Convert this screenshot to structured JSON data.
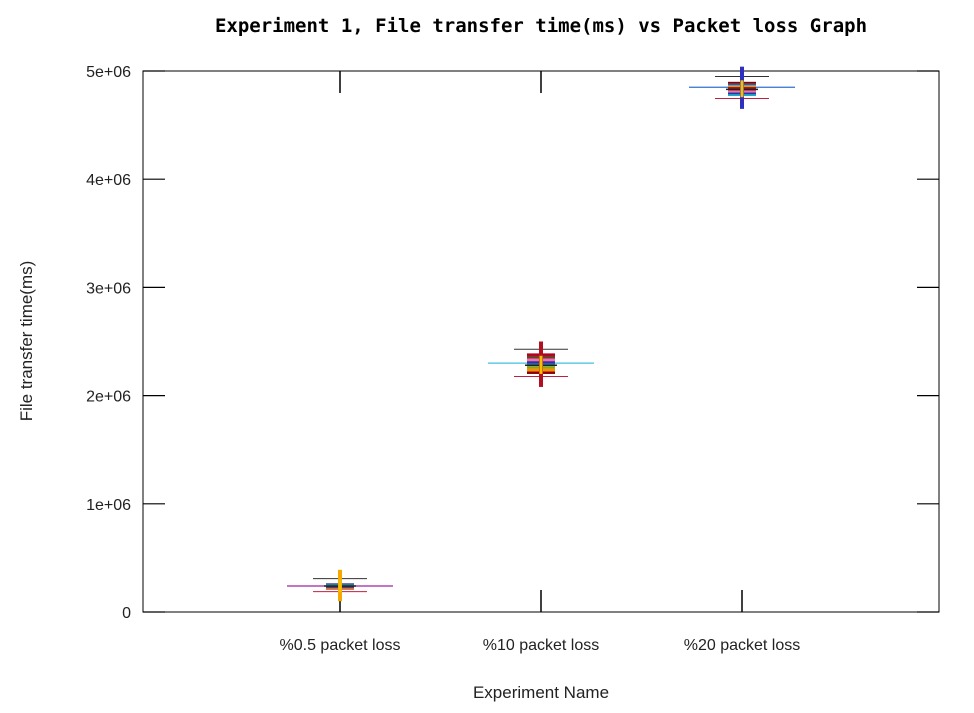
{
  "chart_data": {
    "type": "box",
    "title": "Experiment 1, File transfer time(ms) vs Packet loss Graph",
    "xlabel": "Experiment Name",
    "ylabel": "File transfer time(ms)",
    "categories": [
      "%0.5 packet loss",
      "%10 packet loss",
      "%20 packet loss"
    ],
    "ylim": [
      0,
      5000000
    ],
    "yticks": [
      0,
      1000000,
      2000000,
      3000000,
      4000000,
      5000000
    ],
    "ytick_labels": [
      "0",
      "1e+06",
      "2e+06",
      "3e+06",
      "4e+06",
      "5e+06"
    ],
    "grid": false,
    "boxes": [
      {
        "category": "%0.5 packet loss",
        "min": 100000,
        "q1": 210000,
        "median": 240000,
        "q3": 265000,
        "max": 390000,
        "mean": 240000
      },
      {
        "category": "%10 packet loss",
        "min": 2080000,
        "q1": 2200000,
        "median": 2280000,
        "q3": 2390000,
        "max": 2500000,
        "mean": 2300000
      },
      {
        "category": "%20 packet loss",
        "min": 4650000,
        "q1": 4770000,
        "median": 4830000,
        "q3": 4900000,
        "max": 5040000,
        "mean": 4850000
      }
    ],
    "colors": [
      "#b2001f",
      "#d4a017",
      "#1f5fb4",
      "#8b0000",
      "#ff8c00",
      "#a0a000",
      "#00a0c0",
      "#3030a0",
      "#ff69b4",
      "#6b4226"
    ]
  }
}
